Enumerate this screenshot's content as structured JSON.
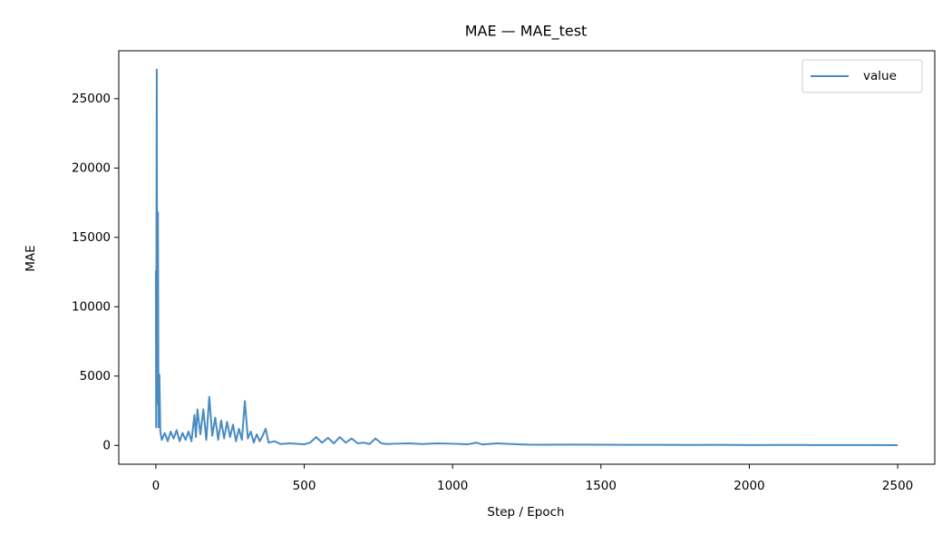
{
  "chart_data": {
    "type": "line",
    "title": "MAE — MAE_test",
    "x_label": "Step / Epoch",
    "y_label": "MAE",
    "x": [
      0,
      1,
      2,
      3,
      5,
      7,
      9,
      12,
      15,
      20,
      30,
      40,
      50,
      60,
      70,
      80,
      90,
      100,
      110,
      120,
      130,
      135,
      140,
      150,
      160,
      170,
      180,
      190,
      200,
      210,
      220,
      230,
      240,
      250,
      260,
      270,
      280,
      290,
      300,
      310,
      320,
      330,
      340,
      350,
      360,
      370,
      380,
      400,
      420,
      450,
      500,
      520,
      540,
      560,
      580,
      600,
      620,
      640,
      660,
      680,
      700,
      720,
      740,
      760,
      780,
      800,
      850,
      900,
      950,
      1000,
      1050,
      1080,
      1100,
      1150,
      1200,
      1250,
      1300,
      1400,
      1500,
      1600,
      1700,
      1800,
      1900,
      2000,
      2100,
      2200,
      2300,
      2400,
      2500
    ],
    "series": [
      {
        "name": "value",
        "color": "#4a8bc2",
        "values": [
          12600,
          1300,
          15000,
          27100,
          3000,
          16800,
          1300,
          5100,
          1000,
          400,
          900,
          300,
          1000,
          500,
          1100,
          300,
          900,
          400,
          1000,
          300,
          2200,
          600,
          2600,
          800,
          2600,
          400,
          3500,
          700,
          2000,
          400,
          1800,
          500,
          1700,
          600,
          1500,
          300,
          1200,
          400,
          3200,
          500,
          1000,
          200,
          800,
          300,
          700,
          1200,
          200,
          300,
          100,
          150,
          80,
          200,
          600,
          200,
          550,
          150,
          600,
          200,
          500,
          150,
          200,
          100,
          500,
          150,
          100,
          120,
          150,
          100,
          150,
          120,
          80,
          200,
          70,
          150,
          100,
          60,
          50,
          60,
          50,
          40,
          45,
          35,
          40,
          30,
          35,
          30,
          28,
          25,
          20
        ]
      }
    ],
    "xlim": [
      -125,
      2625
    ],
    "ylim": [
      -1355,
      28455
    ],
    "xticks": [
      0,
      500,
      1000,
      1500,
      2000,
      2500
    ],
    "yticks": [
      0,
      5000,
      10000,
      15000,
      20000,
      25000
    ],
    "legend": "upper right"
  }
}
